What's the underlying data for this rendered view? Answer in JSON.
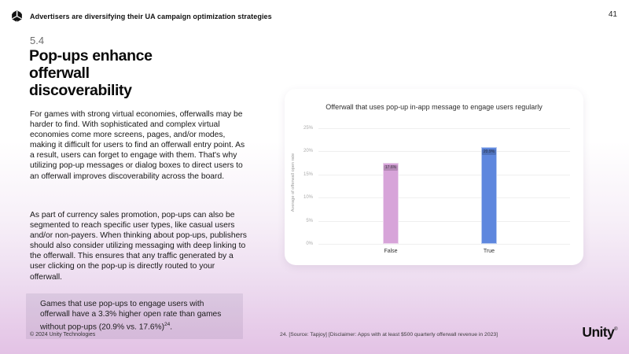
{
  "header": {
    "title": "Advertisers are diversifying their UA campaign optimization strategies",
    "page_number": "41"
  },
  "section": {
    "number": "5.4",
    "title": "Pop-ups enhance offerwall discoverability"
  },
  "body": {
    "paragraph1": "For games with strong virtual economies, offerwalls may be harder to find. With sophisticated and complex virtual economies come more screens, pages, and/or modes, making it difficult for users to find an offerwall entry point. As a result, users can forget to engage with them. That's why utilizing pop-up messages or dialog boxes to direct users to an offerwall improves discoverability across the board.",
    "paragraph2": "As part of currency sales promotion, pop-ups can also be segmented to reach specific user types, like casual users and/or non-payers. When thinking about pop-ups, publishers should also consider utilizing messaging with deep linking to the offerwall. This ensures that any traffic generated by a user clicking on the pop-up is directly routed to your offerwall."
  },
  "callout": {
    "text": "Games that use pop-ups to engage users with offerwall have a 3.3% higher open rate than games without pop-ups (20.9% vs. 17.6%)",
    "superscript": "24",
    "suffix": "."
  },
  "footer": {
    "copyright": "© 2024 Unity Technologies",
    "footnote": "24. [Source: Tapjoy] [Disclaimer: Apps with at least $500 quarterly offerwall revenue in 2023]",
    "brand": "Unity",
    "brand_mark": "®"
  },
  "icons": {
    "header_logo": "unity-cube-logo"
  },
  "chart_data": {
    "type": "bar",
    "title": "Offerwall that uses pop-up in-app message to engage users regularly",
    "xlabel": "",
    "ylabel": "Average of offerwall open rate",
    "categories": [
      "False",
      "True"
    ],
    "values": [
      17.6,
      20.9
    ],
    "value_labels": [
      "17.6%",
      "20.9%"
    ],
    "bar_colors": [
      "#d7a4d9",
      "#5e87de"
    ],
    "ylim": [
      0,
      25
    ],
    "yticks": [
      0,
      5,
      10,
      15,
      20,
      25
    ],
    "ytick_labels": [
      "0%",
      "5%",
      "10%",
      "15%",
      "20%",
      "25%"
    ],
    "grid": true,
    "legend": false
  }
}
